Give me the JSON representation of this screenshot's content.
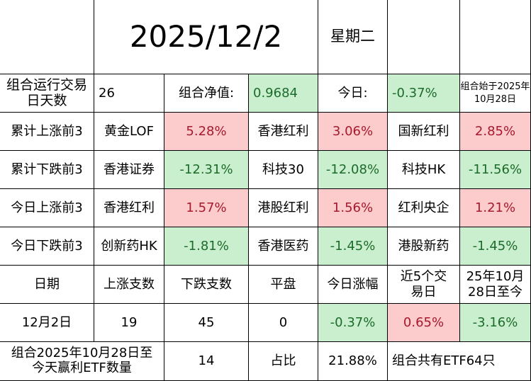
{
  "header": {
    "date": "2025/12/2",
    "weekday": "星期二"
  },
  "summary": {
    "days_label": "组合运行交易日天数",
    "days_value": "26",
    "nav_label": "组合净值:",
    "nav_value": "0.9684",
    "today_label": "今日:",
    "today_value": "-0.37%",
    "start_note": "组合始于2025年10月28日"
  },
  "rankings": [
    {
      "label": "累计上涨前3",
      "items": [
        {
          "name": "黄金LOF",
          "value": "5.28%"
        },
        {
          "name": "香港红利",
          "value": "3.06%"
        },
        {
          "name": "国新红利",
          "value": "2.85%"
        }
      ]
    },
    {
      "label": "累计下跌前3",
      "items": [
        {
          "name": "香港证券",
          "value": "-12.31%"
        },
        {
          "name": "科技30",
          "value": "-12.08%"
        },
        {
          "name": "科技HK",
          "value": "-11.56%"
        }
      ]
    },
    {
      "label": "今日上涨前3",
      "items": [
        {
          "name": "香港红利",
          "value": "1.57%"
        },
        {
          "name": "港股红利",
          "value": "1.56%"
        },
        {
          "name": "红利央企",
          "value": "1.21%"
        }
      ]
    },
    {
      "label": "今日下跌前3",
      "items": [
        {
          "name": "创新药HK",
          "value": "-1.81%"
        },
        {
          "name": "香港医药",
          "value": "-1.45%"
        },
        {
          "name": "港股新药",
          "value": "-1.45%"
        }
      ]
    }
  ],
  "stats": {
    "headers": [
      "日期",
      "上涨支数",
      "下跌支数",
      "平盘",
      "今日涨幅",
      "近5个交易日",
      "25年10月28日至今"
    ],
    "row": [
      "12月2日",
      "19",
      "45",
      "0",
      "-0.37%",
      "0.65%",
      "-3.16%"
    ]
  },
  "footer": {
    "profit_label": "组合2025年10月28日至今天赢利ETF数量",
    "profit_count": "14",
    "ratio_label": "占比",
    "ratio_value": "21.88%",
    "total_note": "组合共有ETF64只"
  },
  "colors": {
    "up_bg": "#fccbcc",
    "up_text": "#a6192e",
    "down_bg": "#c9efce",
    "down_text": "#1d6b2a"
  }
}
